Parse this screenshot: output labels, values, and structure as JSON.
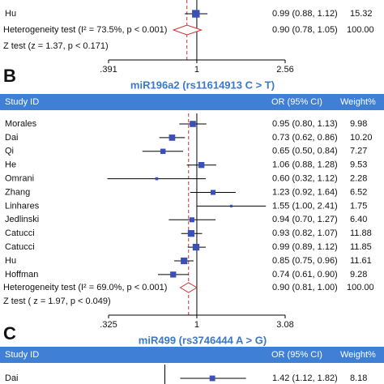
{
  "chart_data": [
    {
      "type": "forest",
      "xscale": "log",
      "xlim": [
        0.391,
        2.56
      ],
      "xticks": [
        {
          "value": 0.391,
          "label": ".391"
        },
        1,
        2.56
      ],
      "studies": {
        "names": [
          "Hu"
        ],
        "or": [
          0.99
        ],
        "lo": [
          0.88
        ],
        "hi": [
          1.12
        ],
        "weights": [
          15.32
        ],
        "or_labels": [
          "0.99 (0.88, 1.12)"
        ],
        "weight_labels": [
          "15.32"
        ]
      },
      "pooled": {
        "or": 0.9,
        "lo": 0.78,
        "hi": 1.05,
        "or_label": "0.90 (0.78, 1.05)",
        "weight_label": "100.00",
        "heterogeneity": "Heterogeneity test (I² = 73.5%, p < 0.001)"
      },
      "z_test": "Z test (z = 1.37, p < 0.171)"
    },
    {
      "type": "forest",
      "label": "B",
      "title": "miR196a2 (rs11614913 C > T)",
      "xscale": "log",
      "columns": [
        "Study ID",
        "OR (95% CI)",
        "Weight%"
      ],
      "xlim": [
        0.325,
        3.08
      ],
      "xticks": [
        {
          "value": 0.325,
          "label": ".325"
        },
        1,
        3.08
      ],
      "studies": {
        "names": [
          "Morales",
          "Dai",
          "Qi",
          "He",
          "Omrani",
          "Zhang",
          "Linhares",
          "Jedlinski",
          "Catucci",
          "Catucci",
          "Hu",
          "Hoffman"
        ],
        "or": [
          0.95,
          0.73,
          0.65,
          1.06,
          0.6,
          1.23,
          1.55,
          0.94,
          0.93,
          0.99,
          0.85,
          0.74
        ],
        "lo": [
          0.8,
          0.62,
          0.5,
          0.88,
          0.32,
          0.92,
          1.0,
          0.7,
          0.82,
          0.89,
          0.75,
          0.61
        ],
        "hi": [
          1.13,
          0.86,
          0.84,
          1.28,
          1.12,
          1.64,
          2.41,
          1.27,
          1.07,
          1.12,
          0.96,
          0.9
        ],
        "weights": [
          9.98,
          10.2,
          7.27,
          9.53,
          2.28,
          6.52,
          1.75,
          6.4,
          11.88,
          11.85,
          11.61,
          9.28
        ],
        "or_labels": [
          "0.95 (0.80, 1.13)",
          "0.73 (0.62, 0.86)",
          "0.65 (0.50, 0.84)",
          "1.06 (0.88, 1.28)",
          "0.60 (0.32, 1.12)",
          "1.23 (0.92, 1.64)",
          "1.55 (1.00, 2.41)",
          "0.94 (0.70, 1.27)",
          "0.93 (0.82, 1.07)",
          "0.99 (0.89, 1.12)",
          "0.85 (0.75, 0.96)",
          "0.74 (0.61, 0.90)"
        ],
        "weight_labels": [
          "9.98",
          "10.20",
          "7.27",
          "9.53",
          "2.28",
          "6.52",
          "1.75",
          "6.40",
          "11.88",
          "11.85",
          "11.61",
          "9.28"
        ]
      },
      "pooled": {
        "or": 0.9,
        "lo": 0.81,
        "hi": 1.0,
        "or_label": "0.90 (0.81, 1.00)",
        "weight_label": "100.00",
        "heterogeneity": "Heterogeneity test (I² = 69.0%, p < 0.001)"
      },
      "z_test": "Z test ( z = 1.97, p < 0.049)"
    },
    {
      "type": "forest",
      "label": "C",
      "title": "miR499 (rs3746444 A > G)",
      "xscale": "log",
      "columns": [
        "Study ID",
        "OR (95% CI)",
        "Weight%"
      ],
      "xlim": [
        0.66,
        2.43
      ],
      "studies": {
        "names": [
          "Dai"
        ],
        "or": [
          1.42
        ],
        "lo": [
          1.12
        ],
        "hi": [
          1.82
        ],
        "weights": [
          8.18
        ],
        "or_labels": [
          "1.42 (1.12, 1.82)"
        ],
        "weight_labels": [
          "8.18"
        ]
      }
    }
  ]
}
